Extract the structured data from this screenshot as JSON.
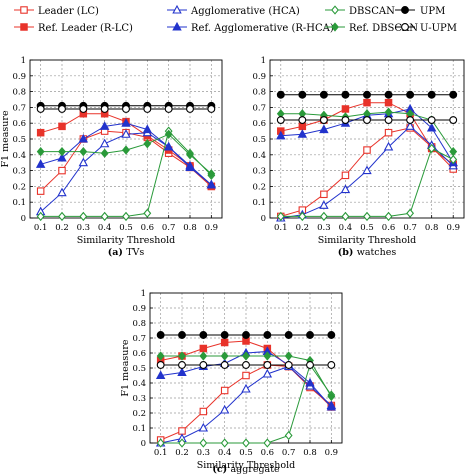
{
  "legend": [
    {
      "name": "Leader (LC)",
      "color": "#e8332a",
      "marker": "open-square"
    },
    {
      "name": "Ref. Leader (R-LC)",
      "color": "#e8332a",
      "marker": "filled-square"
    },
    {
      "name": "Agglomerative (HCA)",
      "color": "#2233cc",
      "marker": "open-triangle"
    },
    {
      "name": "Ref. Agglomerative (R-HCA)",
      "color": "#2233cc",
      "marker": "filled-triangle"
    },
    {
      "name": "DBSCAN",
      "color": "#2a9a3a",
      "marker": "open-diamond"
    },
    {
      "name": "Ref. DBSCAN",
      "color": "#2a9a3a",
      "marker": "filled-diamond"
    },
    {
      "name": "UPM",
      "color": "#000000",
      "marker": "filled-circle"
    },
    {
      "name": "U-UPM",
      "color": "#000000",
      "marker": "open-circle"
    }
  ],
  "chart_data": [
    {
      "type": "line",
      "caption_letter": "(a)",
      "caption_name": "TVs",
      "xlabel": "Similarity Threshold",
      "ylabel": "F1 measure",
      "x": [
        0.1,
        0.2,
        0.3,
        0.4,
        0.5,
        0.6,
        0.7,
        0.8,
        0.9
      ],
      "xlim": [
        0.05,
        0.95
      ],
      "ylim": [
        0,
        1
      ],
      "yticks": [
        "0",
        "0.1",
        "0.2",
        "0.3",
        "0.4",
        "0.5",
        "0.6",
        "0.7",
        "0.8",
        "0.9",
        "1"
      ],
      "grid": true,
      "series": [
        {
          "name": "Leader (LC)",
          "values": [
            0.17,
            0.3,
            0.5,
            0.55,
            0.54,
            0.51,
            0.41,
            0.32,
            0.2
          ]
        },
        {
          "name": "Ref. Leader (R-LC)",
          "values": [
            0.54,
            0.58,
            0.66,
            0.66,
            0.61,
            0.52,
            0.43,
            0.33,
            0.2
          ]
        },
        {
          "name": "Agglomerative (HCA)",
          "values": [
            0.04,
            0.16,
            0.35,
            0.47,
            0.53,
            0.54,
            0.45,
            0.33,
            0.21
          ]
        },
        {
          "name": "Ref. Agglomerative (R-HCA)",
          "values": [
            0.34,
            0.38,
            0.5,
            0.58,
            0.6,
            0.56,
            0.45,
            0.32,
            0.21
          ]
        },
        {
          "name": "DBSCAN",
          "values": [
            0.01,
            0.01,
            0.01,
            0.01,
            0.01,
            0.03,
            0.55,
            0.41,
            0.27
          ]
        },
        {
          "name": "Ref. DBSCAN",
          "values": [
            0.42,
            0.42,
            0.42,
            0.41,
            0.43,
            0.47,
            0.53,
            0.4,
            0.28
          ]
        },
        {
          "name": "UPM",
          "values": [
            0.71,
            0.71,
            0.71,
            0.71,
            0.71,
            0.71,
            0.71,
            0.71,
            0.71
          ]
        },
        {
          "name": "U-UPM",
          "values": [
            0.69,
            0.69,
            0.69,
            0.69,
            0.69,
            0.69,
            0.69,
            0.69,
            0.69
          ]
        }
      ]
    },
    {
      "type": "line",
      "caption_letter": "(b)",
      "caption_name": "watches",
      "xlabel": "Similarity Threshold",
      "ylabel": "",
      "x": [
        0.1,
        0.2,
        0.3,
        0.4,
        0.5,
        0.6,
        0.7,
        0.8,
        0.9
      ],
      "xlim": [
        0.05,
        0.95
      ],
      "ylim": [
        0,
        1
      ],
      "yticks": [
        "0",
        "0.1",
        "0.2",
        "0.3",
        "0.4",
        "0.5",
        "0.6",
        "0.7",
        "0.8",
        "0.9",
        "1"
      ],
      "grid": true,
      "series": [
        {
          "name": "Leader (LC)",
          "values": [
            0.01,
            0.05,
            0.15,
            0.27,
            0.43,
            0.54,
            0.57,
            0.45,
            0.31
          ]
        },
        {
          "name": "Ref. Leader (R-LC)",
          "values": [
            0.55,
            0.58,
            0.62,
            0.69,
            0.73,
            0.73,
            0.66,
            0.44,
            0.34
          ]
        },
        {
          "name": "Agglomerative (HCA)",
          "values": [
            0.0,
            0.02,
            0.08,
            0.18,
            0.3,
            0.45,
            0.58,
            0.46,
            0.33
          ]
        },
        {
          "name": "Ref. Agglomerative (R-HCA)",
          "values": [
            0.52,
            0.53,
            0.56,
            0.6,
            0.65,
            0.66,
            0.69,
            0.57,
            0.35
          ]
        },
        {
          "name": "DBSCAN",
          "values": [
            0.01,
            0.01,
            0.01,
            0.01,
            0.01,
            0.01,
            0.03,
            0.44,
            0.37
          ]
        },
        {
          "name": "Ref. DBSCAN",
          "values": [
            0.66,
            0.66,
            0.65,
            0.64,
            0.66,
            0.67,
            0.66,
            0.62,
            0.42
          ]
        },
        {
          "name": "UPM",
          "values": [
            0.78,
            0.78,
            0.78,
            0.78,
            0.78,
            0.78,
            0.78,
            0.78,
            0.78
          ]
        },
        {
          "name": "U-UPM",
          "values": [
            0.62,
            0.62,
            0.62,
            0.62,
            0.62,
            0.62,
            0.62,
            0.62,
            0.62
          ]
        }
      ]
    },
    {
      "type": "line",
      "caption_letter": "(c)",
      "caption_name": "aggregate",
      "xlabel": "Similarity Threshold",
      "ylabel": "F1 measure",
      "x": [
        0.1,
        0.2,
        0.3,
        0.4,
        0.5,
        0.6,
        0.7,
        0.8,
        0.9
      ],
      "xlim": [
        0.05,
        0.95
      ],
      "ylim": [
        0,
        1
      ],
      "yticks": [
        "0",
        "0.1",
        "0.2",
        "0.3",
        "0.4",
        "0.5",
        "0.6",
        "0.7",
        "0.8",
        "0.9",
        "1"
      ],
      "grid": true,
      "series": [
        {
          "name": "Leader (LC)",
          "values": [
            0.02,
            0.08,
            0.21,
            0.35,
            0.45,
            0.52,
            0.51,
            0.37,
            0.25
          ]
        },
        {
          "name": "Ref. Leader (R-LC)",
          "values": [
            0.55,
            0.58,
            0.63,
            0.67,
            0.68,
            0.63,
            0.51,
            0.38,
            0.24
          ]
        },
        {
          "name": "Agglomerative (HCA)",
          "values": [
            0.0,
            0.03,
            0.1,
            0.22,
            0.36,
            0.46,
            0.51,
            0.38,
            0.25
          ]
        },
        {
          "name": "Ref. Agglomerative (R-HCA)",
          "values": [
            0.45,
            0.47,
            0.51,
            0.53,
            0.6,
            0.61,
            0.52,
            0.4,
            0.24
          ]
        },
        {
          "name": "DBSCAN",
          "values": [
            0.0,
            0.0,
            0.0,
            0.0,
            0.0,
            0.0,
            0.05,
            0.52,
            0.32
          ]
        },
        {
          "name": "Ref. DBSCAN",
          "values": [
            0.58,
            0.58,
            0.58,
            0.58,
            0.58,
            0.58,
            0.58,
            0.55,
            0.31
          ]
        },
        {
          "name": "UPM",
          "values": [
            0.72,
            0.72,
            0.72,
            0.72,
            0.72,
            0.72,
            0.72,
            0.72,
            0.72
          ]
        },
        {
          "name": "U-UPM",
          "values": [
            0.52,
            0.52,
            0.52,
            0.52,
            0.52,
            0.52,
            0.52,
            0.52,
            0.52
          ]
        }
      ]
    }
  ]
}
